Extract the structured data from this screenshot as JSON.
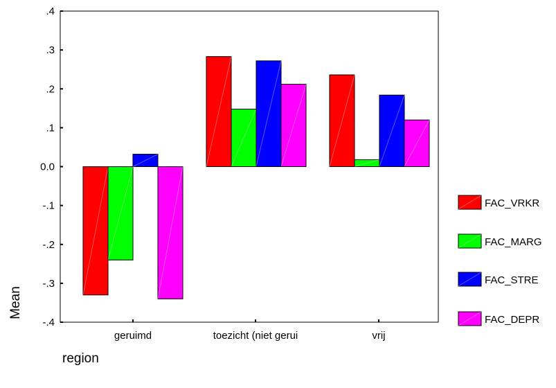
{
  "chart_data": {
    "type": "bar",
    "title": "",
    "xlabel": "region",
    "ylabel": "Mean",
    "categories": [
      "geruimd",
      "toezicht (niet gerui",
      "vrij"
    ],
    "series": [
      {
        "name": "FAC_VRKR",
        "color": "#ff0000",
        "values": [
          -0.33,
          0.283,
          0.236
        ]
      },
      {
        "name": "FAC_MARG",
        "color": "#00ff00",
        "values": [
          -0.24,
          0.148,
          0.018
        ]
      },
      {
        "name": "FAC_STRE",
        "color": "#0000ff",
        "values": [
          0.032,
          0.272,
          0.184
        ]
      },
      {
        "name": "FAC_DEPR",
        "color": "#ff00ff",
        "values": [
          -0.34,
          0.212,
          0.12
        ]
      }
    ],
    "ylim": [
      -0.4,
      0.4
    ],
    "yticks": [
      ".4",
      ".3",
      ".2",
      ".1",
      "0.0",
      "-.1",
      "-.2",
      "-.3",
      "-.4"
    ],
    "ytick_values": [
      0.4,
      0.3,
      0.2,
      0.1,
      0.0,
      -0.1,
      -0.2,
      -0.3,
      -0.4
    ],
    "grid": false,
    "legend_position": "right"
  }
}
